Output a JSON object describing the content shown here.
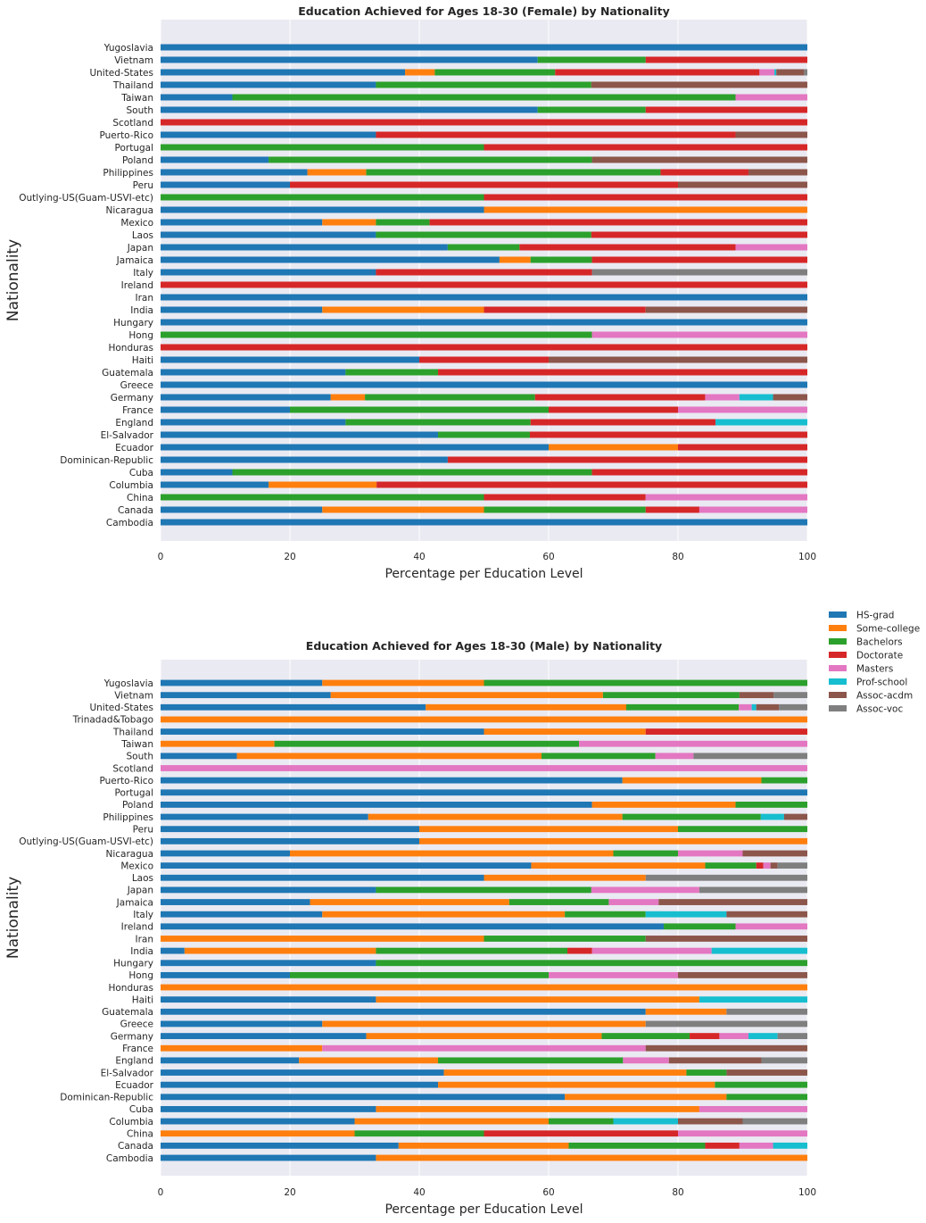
{
  "chart_data": [
    {
      "type": "bar",
      "orientation": "horizontal",
      "stacked": true,
      "title": "Education Achieved for Ages 18-30 (Female) by Nationality",
      "xlabel": "Percentage per Education Level",
      "ylabel": "Nationality",
      "xlim": [
        0,
        100
      ],
      "xticks": [
        0,
        20,
        40,
        60,
        80,
        100
      ],
      "grid": true,
      "levels": [
        "HS-grad",
        "Some-college",
        "Bachelors",
        "Doctorate",
        "Masters",
        "Prof-school",
        "Assoc-acdm",
        "Assoc-voc"
      ],
      "categories": [
        "Cambodia",
        "Canada",
        "China",
        "Columbia",
        "Cuba",
        "Dominican-Republic",
        "Ecuador",
        "El-Salvador",
        "England",
        "France",
        "Germany",
        "Greece",
        "Guatemala",
        "Haiti",
        "Honduras",
        "Hong",
        "Hungary",
        "India",
        "Iran",
        "Ireland",
        "Italy",
        "Jamaica",
        "Japan",
        "Laos",
        "Mexico",
        "Nicaragua",
        "Outlying-US(Guam-USVI-etc)",
        "Peru",
        "Philippines",
        "Poland",
        "Portugal",
        "Puerto-Rico",
        "Scotland",
        "South",
        "Taiwan",
        "Thailand",
        "United-States",
        "Vietnam",
        "Yugoslavia"
      ],
      "values": [
        [
          100,
          0,
          0,
          0,
          0,
          0,
          0,
          0
        ],
        [
          25,
          25,
          25,
          8.3,
          16.7,
          0,
          0,
          0
        ],
        [
          0,
          0,
          50,
          25,
          25,
          0,
          0,
          0
        ],
        [
          16.7,
          16.7,
          0,
          66.6,
          0,
          0,
          0,
          0
        ],
        [
          11.1,
          0,
          55.6,
          33.3,
          0,
          0,
          0,
          0
        ],
        [
          44.4,
          0,
          0,
          55.6,
          0,
          0,
          0,
          0
        ],
        [
          60,
          20,
          0,
          20,
          0,
          0,
          0,
          0
        ],
        [
          42.9,
          0,
          14.2,
          42.9,
          0,
          0,
          0,
          0
        ],
        [
          28.6,
          0,
          28.6,
          28.6,
          0,
          14.2,
          0,
          0
        ],
        [
          20,
          0,
          40,
          20,
          20,
          0,
          0,
          0
        ],
        [
          26.3,
          5.3,
          26.3,
          26.3,
          5.3,
          5.2,
          5.3,
          0
        ],
        [
          100,
          0,
          0,
          0,
          0,
          0,
          0,
          0
        ],
        [
          28.6,
          0,
          14.3,
          57.1,
          0,
          0,
          0,
          0
        ],
        [
          40,
          0,
          0,
          20,
          0,
          0,
          40,
          0
        ],
        [
          0,
          0,
          0,
          100,
          0,
          0,
          0,
          0
        ],
        [
          0,
          0,
          66.7,
          0,
          33.3,
          0,
          0,
          0
        ],
        [
          100,
          0,
          0,
          0,
          0,
          0,
          0,
          0
        ],
        [
          25,
          25,
          0,
          25,
          0,
          0,
          25,
          0
        ],
        [
          100,
          0,
          0,
          0,
          0,
          0,
          0,
          0
        ],
        [
          0,
          0,
          0,
          100,
          0,
          0,
          0,
          0
        ],
        [
          33.3,
          0,
          0,
          33.4,
          0,
          0,
          0,
          33.3
        ],
        [
          52.4,
          4.8,
          9.5,
          33.3,
          0,
          0,
          0,
          0
        ],
        [
          44.4,
          0,
          11.1,
          33.4,
          11.1,
          0,
          0,
          0
        ],
        [
          33.3,
          0,
          33.3,
          33.4,
          0,
          0,
          0,
          0
        ],
        [
          25,
          8.3,
          8.3,
          58.4,
          0,
          0,
          0,
          0
        ],
        [
          50,
          50,
          0,
          0,
          0,
          0,
          0,
          0
        ],
        [
          0,
          0,
          50,
          50,
          0,
          0,
          0,
          0
        ],
        [
          20,
          0,
          0,
          60,
          0,
          0,
          20,
          0
        ],
        [
          22.7,
          9.1,
          45.5,
          13.6,
          0,
          0,
          9.1,
          0
        ],
        [
          16.7,
          0,
          50,
          0,
          0,
          0,
          33.3,
          0
        ],
        [
          0,
          0,
          50,
          50,
          0,
          0,
          0,
          0
        ],
        [
          33.3,
          0,
          0,
          55.6,
          0,
          0,
          11.1,
          0
        ],
        [
          0,
          0,
          0,
          100,
          0,
          0,
          0,
          0
        ],
        [
          58.3,
          0,
          16.7,
          25,
          0,
          0,
          0,
          0
        ],
        [
          11.1,
          0,
          77.8,
          0,
          11.1,
          0,
          0,
          0
        ],
        [
          33.3,
          0,
          33.3,
          0,
          0,
          0,
          33.4,
          0
        ],
        [
          37.8,
          4.6,
          18.6,
          31.6,
          2.3,
          0.3,
          4.3,
          0.5
        ],
        [
          58.3,
          0,
          16.7,
          25,
          0,
          0,
          0,
          0
        ],
        [
          100,
          0,
          0,
          0,
          0,
          0,
          0,
          0
        ]
      ]
    },
    {
      "type": "bar",
      "orientation": "horizontal",
      "stacked": true,
      "title": "Education Achieved for Ages 18-30 (Male) by Nationality",
      "xlabel": "Percentage per Education Level",
      "ylabel": "Nationality",
      "xlim": [
        0,
        100
      ],
      "xticks": [
        0,
        20,
        40,
        60,
        80,
        100
      ],
      "grid": true,
      "legend_position": "right of plot, top",
      "levels": [
        "HS-grad",
        "Some-college",
        "Bachelors",
        "Doctorate",
        "Masters",
        "Prof-school",
        "Assoc-acdm",
        "Assoc-voc"
      ],
      "categories": [
        "Cambodia",
        "Canada",
        "China",
        "Columbia",
        "Cuba",
        "Dominican-Republic",
        "Ecuador",
        "El-Salvador",
        "England",
        "France",
        "Germany",
        "Greece",
        "Guatemala",
        "Haiti",
        "Honduras",
        "Hong",
        "Hungary",
        "India",
        "Iran",
        "Ireland",
        "Italy",
        "Jamaica",
        "Japan",
        "Laos",
        "Mexico",
        "Nicaragua",
        "Outlying-US(Guam-USVI-etc)",
        "Peru",
        "Philippines",
        "Poland",
        "Portugal",
        "Puerto-Rico",
        "Scotland",
        "South",
        "Taiwan",
        "Thailand",
        "Trinadad&Tobago",
        "United-States",
        "Vietnam",
        "Yugoslavia"
      ],
      "values": [
        [
          33.3,
          66.7,
          0,
          0,
          0,
          0,
          0,
          0
        ],
        [
          36.8,
          26.3,
          21.1,
          5.3,
          5.2,
          5.3,
          0,
          0
        ],
        [
          0,
          30,
          20,
          30,
          20,
          0,
          0,
          0
        ],
        [
          30,
          30,
          10,
          0,
          0,
          10,
          10,
          10
        ],
        [
          33.3,
          50,
          0,
          0,
          16.7,
          0,
          0,
          0
        ],
        [
          62.5,
          25,
          12.5,
          0,
          0,
          0,
          0,
          0
        ],
        [
          42.9,
          42.8,
          14.3,
          0,
          0,
          0,
          0,
          0
        ],
        [
          43.8,
          37.5,
          6.2,
          0,
          0,
          0,
          12.5,
          0
        ],
        [
          21.4,
          21.5,
          28.6,
          0,
          7.1,
          0,
          14.3,
          7.1
        ],
        [
          0,
          25,
          0,
          0,
          50,
          0,
          25,
          0
        ],
        [
          31.8,
          36.4,
          13.6,
          4.6,
          4.5,
          4.5,
          0,
          4.6
        ],
        [
          25,
          50,
          0,
          0,
          0,
          0,
          0,
          25
        ],
        [
          75,
          12.5,
          0,
          0,
          0,
          0,
          0,
          12.5
        ],
        [
          33.3,
          50,
          0,
          0,
          0,
          16.7,
          0,
          0
        ],
        [
          0,
          100,
          0,
          0,
          0,
          0,
          0,
          0
        ],
        [
          20,
          0,
          40,
          0,
          20,
          0,
          20,
          0
        ],
        [
          33.3,
          0,
          66.7,
          0,
          0,
          0,
          0,
          0
        ],
        [
          3.7,
          29.6,
          29.6,
          3.8,
          18.5,
          14.8,
          0,
          0
        ],
        [
          0,
          50,
          25,
          0,
          0,
          0,
          25,
          0
        ],
        [
          77.8,
          0,
          11.1,
          0,
          11.1,
          0,
          0,
          0
        ],
        [
          25,
          37.5,
          12.5,
          0,
          0,
          12.5,
          12.5,
          0
        ],
        [
          23.1,
          30.8,
          15.4,
          0,
          7.7,
          0,
          23,
          0
        ],
        [
          33.3,
          0,
          33.3,
          0,
          16.7,
          0,
          0,
          16.7
        ],
        [
          50,
          25,
          0,
          0,
          0,
          0,
          0,
          25
        ],
        [
          57.3,
          26.9,
          7.9,
          1.1,
          1.1,
          0,
          1.1,
          4.6
        ],
        [
          20,
          50,
          10,
          0,
          10,
          0,
          10,
          0
        ],
        [
          40,
          60,
          0,
          0,
          0,
          0,
          0,
          0
        ],
        [
          40,
          40,
          20,
          0,
          0,
          0,
          0,
          0
        ],
        [
          32.1,
          39.3,
          21.4,
          0,
          0,
          3.6,
          3.6,
          0
        ],
        [
          66.7,
          22.2,
          11.1,
          0,
          0,
          0,
          0,
          0
        ],
        [
          100,
          0,
          0,
          0,
          0,
          0,
          0,
          0
        ],
        [
          71.4,
          21.5,
          7.1,
          0,
          0,
          0,
          0,
          0
        ],
        [
          0,
          0,
          0,
          0,
          100,
          0,
          0,
          0
        ],
        [
          11.8,
          47.1,
          17.6,
          0,
          5.9,
          0,
          0,
          17.6
        ],
        [
          0,
          17.6,
          47.1,
          0,
          35.3,
          0,
          0,
          0
        ],
        [
          50,
          25,
          0,
          25,
          0,
          0,
          0,
          0
        ],
        [
          0,
          100,
          0,
          0,
          0,
          0,
          0,
          0
        ],
        [
          41,
          31,
          17.4,
          0,
          2,
          0.7,
          3.5,
          4.4
        ],
        [
          26.3,
          42.1,
          21.1,
          0,
          0,
          0,
          5.3,
          5.2
        ],
        [
          25,
          25,
          50,
          0,
          0,
          0,
          0,
          0
        ]
      ]
    }
  ],
  "legend": {
    "items": [
      {
        "label": "HS-grad",
        "color": "#1f77b4"
      },
      {
        "label": "Some-college",
        "color": "#ff7f0e"
      },
      {
        "label": "Bachelors",
        "color": "#2ca02c"
      },
      {
        "label": "Doctorate",
        "color": "#d62728"
      },
      {
        "label": "Masters",
        "color": "#e377c2"
      },
      {
        "label": "Prof-school",
        "color": "#17becf"
      },
      {
        "label": "Assoc-acdm",
        "color": "#8c564b"
      },
      {
        "label": "Assoc-voc",
        "color": "#7f7f7f"
      }
    ]
  },
  "colors": {
    "plot_background": "#eaeaf2",
    "grid": "#ffffff",
    "text": "#262626"
  }
}
